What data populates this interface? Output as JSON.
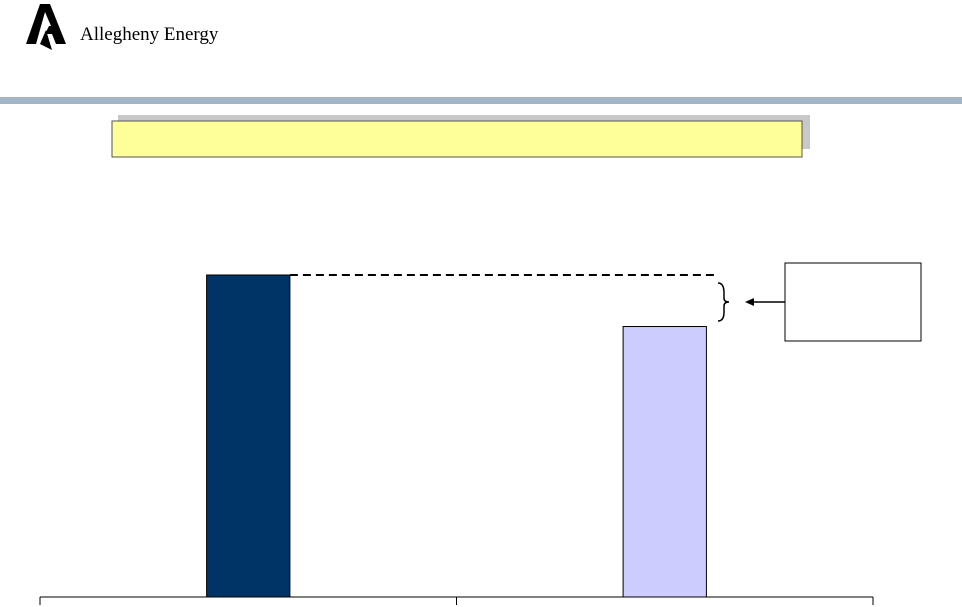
{
  "logo": "Allegheny Energy",
  "chart_data": {
    "type": "bar",
    "categories": [
      null,
      null
    ],
    "values": [
      100,
      84
    ],
    "colors": [
      "#003366",
      "#ccccff"
    ],
    "ylim": [
      0,
      100
    ]
  }
}
